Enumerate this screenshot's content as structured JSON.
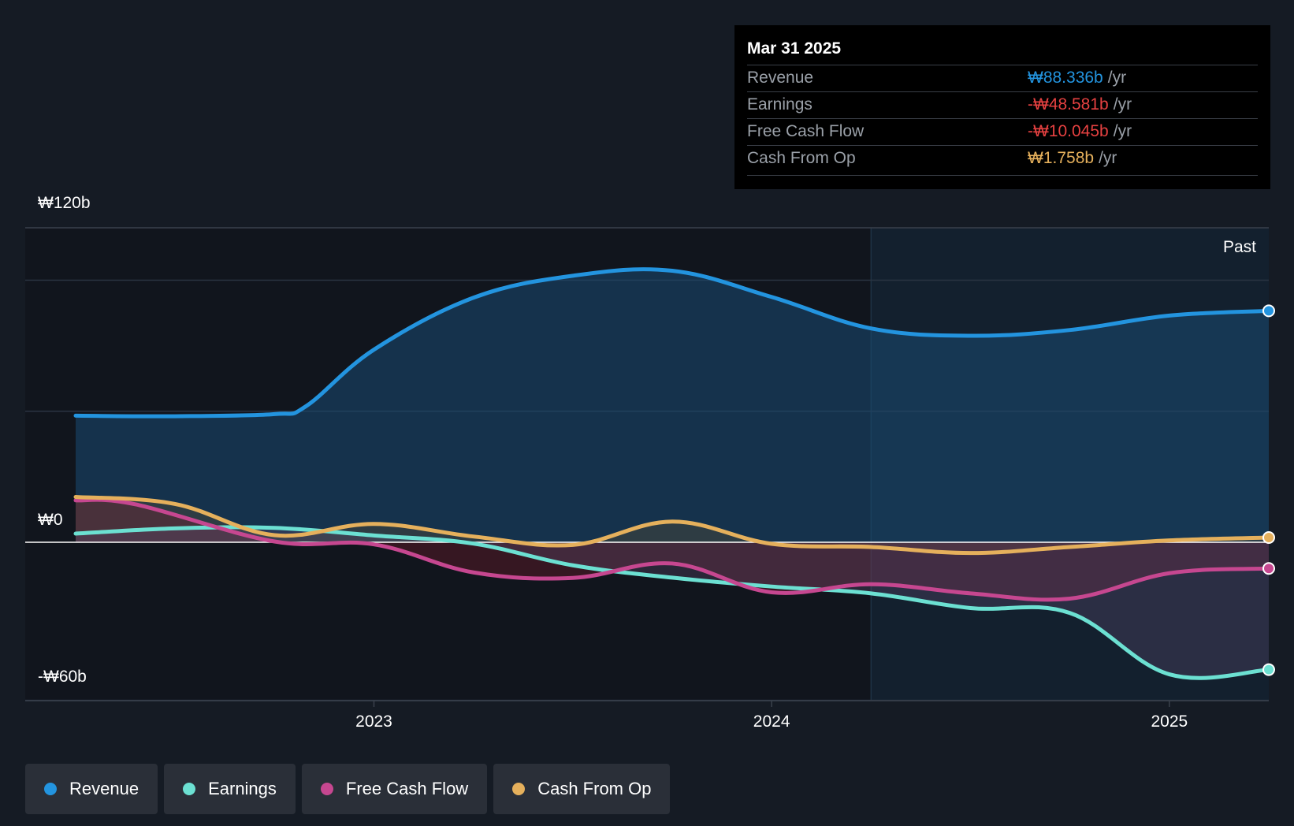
{
  "tooltip": {
    "date": "Mar 31 2025",
    "rows": [
      {
        "label": "Revenue",
        "value": "₩88.336b",
        "unit": "/yr",
        "color": "#2394df"
      },
      {
        "label": "Earnings",
        "value": "-₩48.581b",
        "unit": "/yr",
        "color": "#e64141"
      },
      {
        "label": "Free Cash Flow",
        "value": "-₩10.045b",
        "unit": "/yr",
        "color": "#e64141"
      },
      {
        "label": "Cash From Op",
        "value": "₩1.758b",
        "unit": "/yr",
        "color": "#e5b05c"
      }
    ]
  },
  "legend": [
    {
      "label": "Revenue",
      "color": "#2394df"
    },
    {
      "label": "Earnings",
      "color": "#6ce0d2"
    },
    {
      "label": "Free Cash Flow",
      "color": "#c64790"
    },
    {
      "label": "Cash From Op",
      "color": "#e5b05c"
    }
  ],
  "chart_data": {
    "type": "line",
    "title": "",
    "past_label": "Past",
    "y_tick_labels": [
      {
        "value": 120,
        "label": "₩120b"
      },
      {
        "value": 0,
        "label": "₩0"
      },
      {
        "value": -60,
        "label": "-₩60b"
      }
    ],
    "x_tick_labels": [
      {
        "value": 2023.0,
        "label": "2023"
      },
      {
        "value": 2024.0,
        "label": "2024"
      },
      {
        "value": 2025.0,
        "label": "2025"
      }
    ],
    "xlim": [
      2022.12,
      2025.25
    ],
    "ylim": [
      -60,
      120
    ],
    "gridlines": [
      100,
      50
    ],
    "past_start": 2024.25,
    "series": [
      {
        "name": "Revenue",
        "color": "#2394df",
        "fill": "#1a4a72",
        "points": [
          [
            2022.25,
            48.3
          ],
          [
            2022.5,
            48.1
          ],
          [
            2022.75,
            48.9
          ],
          [
            2022.83,
            52
          ],
          [
            2023.0,
            73.5
          ],
          [
            2023.25,
            93.3
          ],
          [
            2023.5,
            101.7
          ],
          [
            2023.75,
            103.6
          ],
          [
            2024.0,
            93.6
          ],
          [
            2024.25,
            81.6
          ],
          [
            2024.5,
            78.8
          ],
          [
            2024.75,
            81.0
          ],
          [
            2025.0,
            86.5
          ],
          [
            2025.25,
            88.3
          ]
        ]
      },
      {
        "name": "Earnings",
        "color": "#6ce0d2",
        "fill": "#5a4a6e",
        "points": [
          [
            2022.25,
            3.3
          ],
          [
            2022.5,
            5.3
          ],
          [
            2022.75,
            5.5
          ],
          [
            2023.0,
            2.6
          ],
          [
            2023.25,
            -0.5
          ],
          [
            2023.5,
            -8.8
          ],
          [
            2023.75,
            -13.5
          ],
          [
            2024.0,
            -16.9
          ],
          [
            2024.25,
            -19.5
          ],
          [
            2024.5,
            -25.1
          ],
          [
            2024.75,
            -27.0
          ],
          [
            2025.0,
            -50.4
          ],
          [
            2025.25,
            -48.6
          ]
        ]
      },
      {
        "name": "Free Cash Flow",
        "color": "#c64790",
        "fill": "#7a1e2e",
        "points": [
          [
            2022.25,
            16.0
          ],
          [
            2022.4,
            14.5
          ],
          [
            2022.75,
            0.3
          ],
          [
            2023.0,
            -0.8
          ],
          [
            2023.25,
            -11.5
          ],
          [
            2023.5,
            -13.6
          ],
          [
            2023.75,
            -8.1
          ],
          [
            2024.0,
            -19.1
          ],
          [
            2024.25,
            -16.0
          ],
          [
            2024.5,
            -19.5
          ],
          [
            2024.75,
            -21.5
          ],
          [
            2025.0,
            -11.8
          ],
          [
            2025.25,
            -10.0
          ]
        ]
      },
      {
        "name": "Cash From Op",
        "color": "#e5b05c",
        "fill": "#5e5034",
        "points": [
          [
            2022.25,
            17.3
          ],
          [
            2022.5,
            14.6
          ],
          [
            2022.75,
            2.7
          ],
          [
            2023.0,
            7.0
          ],
          [
            2023.25,
            2.2
          ],
          [
            2023.5,
            -1.0
          ],
          [
            2023.75,
            7.9
          ],
          [
            2024.0,
            -0.6
          ],
          [
            2024.25,
            -1.8
          ],
          [
            2024.5,
            -4.1
          ],
          [
            2024.75,
            -1.8
          ],
          [
            2025.0,
            0.7
          ],
          [
            2025.25,
            1.8
          ]
        ]
      }
    ]
  }
}
